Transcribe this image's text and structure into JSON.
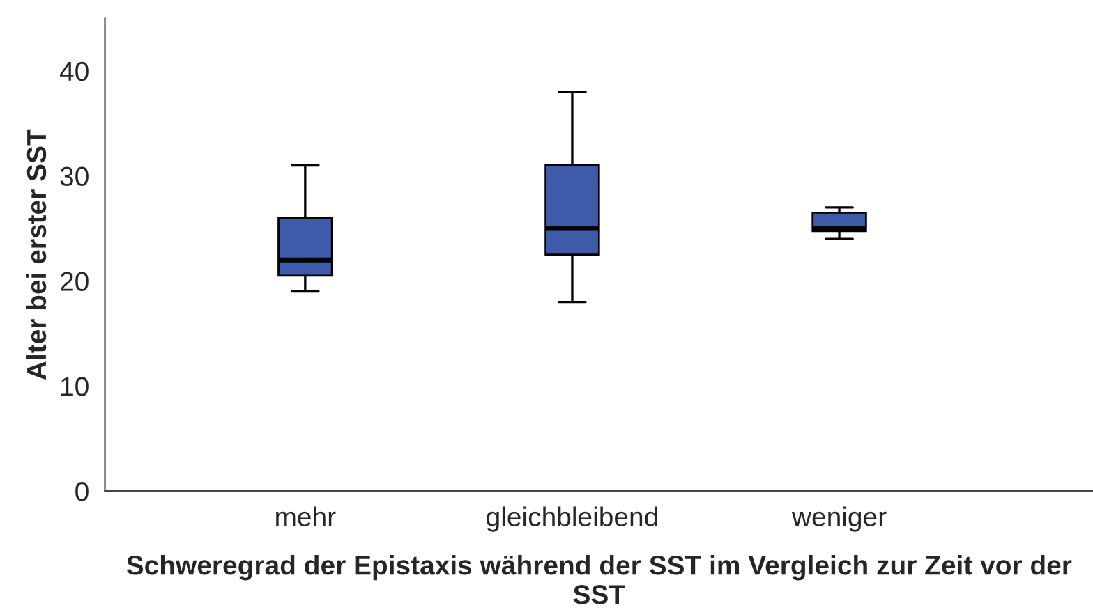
{
  "chart_data": {
    "type": "box",
    "xlabel": "Schweregrad der Epistaxis während der SST im Vergleich zur Zeit vor der SST",
    "ylabel": "Alter bei erster SST",
    "categories": [
      "mehr",
      "gleichbleibend",
      "weniger"
    ],
    "boxes": [
      {
        "low": 19,
        "q1": 20.5,
        "median": 22,
        "q3": 26,
        "high": 31
      },
      {
        "low": 18,
        "q1": 22.5,
        "median": 25,
        "q3": 31,
        "high": 38
      },
      {
        "low": 24,
        "q1": 24.75,
        "median": 25,
        "q3": 26.5,
        "high": 27
      }
    ],
    "color": "#3e5ba9",
    "ylim": [
      0,
      45
    ],
    "yticks": [
      0,
      10,
      20,
      30,
      40
    ],
    "grid": false,
    "legend": false
  }
}
